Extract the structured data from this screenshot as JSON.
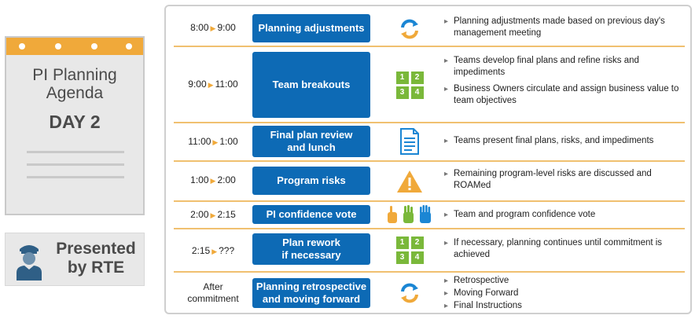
{
  "calendar": {
    "title_line1": "PI Planning",
    "title_line2": "Agenda",
    "day": "DAY 2"
  },
  "presenter": {
    "line1": "Presented",
    "line2": "by RTE",
    "icon": "person-with-cap-icon"
  },
  "agenda": [
    {
      "time_start": "8:00",
      "time_end": "9:00",
      "label_line1": "Planning adjustments",
      "label_line2": "",
      "icon": "sync-arrows-icon",
      "bullets": [
        "Planning adjustments made based on previous day's management meeting"
      ]
    },
    {
      "time_start": "9:00",
      "time_end": "11:00",
      "label_line1": "Team breakouts",
      "label_line2": "",
      "icon": "numbered-grid-icon",
      "grid": [
        "1",
        "2",
        "3",
        "4"
      ],
      "bullets": [
        "Teams develop final plans and refine risks and impediments",
        "Business Owners circulate and assign business value to team objectives"
      ]
    },
    {
      "time_start": "11:00",
      "time_end": "1:00",
      "label_line1": "Final plan review",
      "label_line2": "and lunch",
      "icon": "document-icon",
      "bullets": [
        "Teams present final plans, risks, and impediments"
      ]
    },
    {
      "time_start": "1:00",
      "time_end": "2:00",
      "label_line1": "Program risks",
      "label_line2": "",
      "icon": "warning-triangle-icon",
      "bullets": [
        "Remaining program-level risks are discussed and ROAMed"
      ]
    },
    {
      "time_start": "2:00",
      "time_end": "2:15",
      "label_line1": "PI confidence vote",
      "label_line2": "",
      "icon": "voting-hands-icon",
      "bullets": [
        "Team and program confidence vote"
      ]
    },
    {
      "time_start": "2:15",
      "time_end": "???",
      "label_line1": "Plan rework",
      "label_line2": "if necessary",
      "icon": "numbered-grid-icon",
      "grid": [
        "1",
        "2",
        "3",
        "4"
      ],
      "bullets": [
        "If necessary, planning continues until commitment is achieved"
      ]
    },
    {
      "time_start": "After",
      "time_end": "commitment",
      "label_line1": "Planning retrospective",
      "label_line2": "and moving forward",
      "icon": "sync-arrows-icon",
      "bullets": [
        "Retrospective",
        "Moving Forward",
        "Final Instructions"
      ]
    }
  ],
  "colors": {
    "accent_blue": "#0d6ab5",
    "accent_orange": "#f0a93a",
    "accent_green": "#7ab83a"
  }
}
